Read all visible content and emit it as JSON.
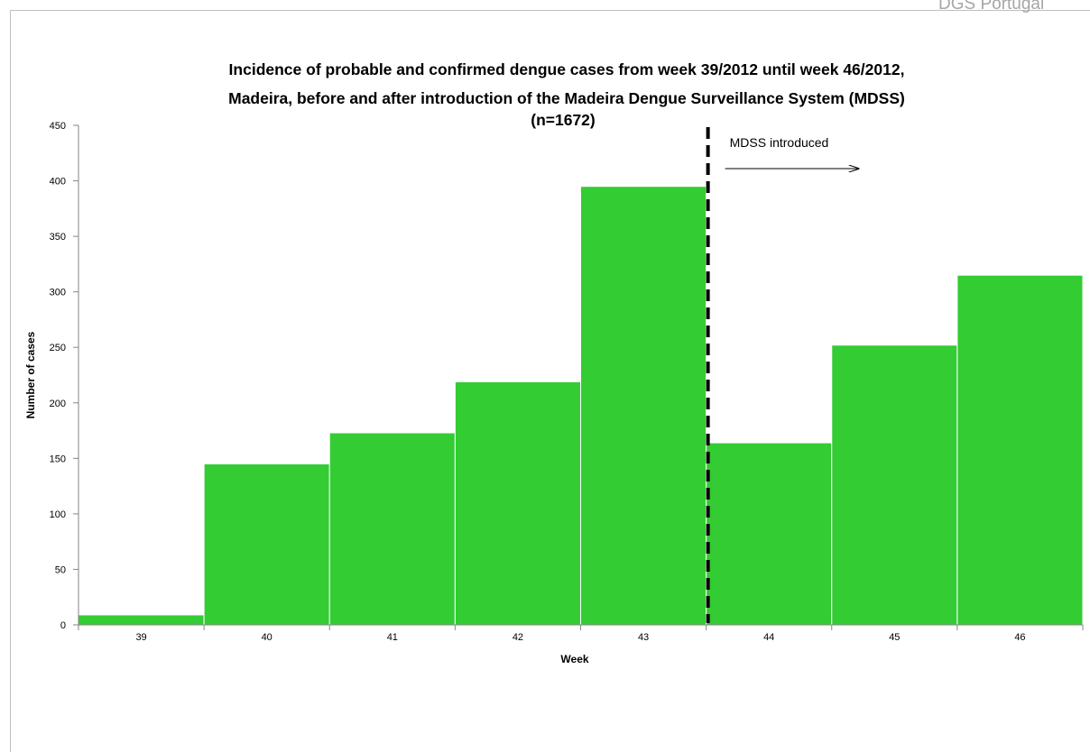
{
  "source_text": "DGS Portugal",
  "chart_data": {
    "type": "bar",
    "title": [
      "Incidence of probable and confirmed dengue cases from week 39/2012 until week 46/2012,",
      "Madeira,  before and after introduction of the Madeira Dengue Surveillance System (MDSS)",
      "(n=1672)"
    ],
    "xlabel": "Week",
    "ylabel": "Number of cases",
    "categories": [
      "39",
      "40",
      "41",
      "42",
      "43",
      "44",
      "45",
      "46"
    ],
    "values": [
      9,
      145,
      173,
      219,
      395,
      164,
      252,
      315
    ],
    "ylim": [
      0,
      450
    ],
    "yticks": [
      0,
      50,
      100,
      150,
      200,
      250,
      300,
      350,
      400,
      450
    ],
    "bar_color": "#33cc33",
    "grid": false,
    "annotation": {
      "text": "MDSS introduced",
      "divider_after_category": "43",
      "arrow": "right"
    }
  }
}
